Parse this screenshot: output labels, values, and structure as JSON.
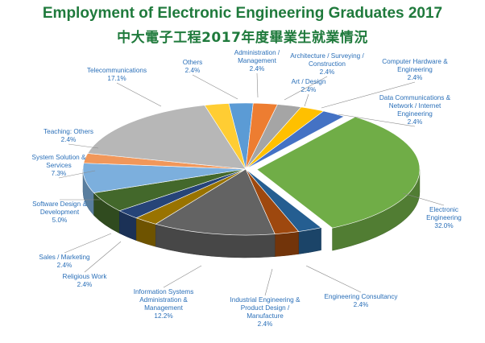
{
  "title": "Employment of Electronic Engineering Graduates 2017",
  "subtitle": "中大電子工程2017年度畢業生就業情況",
  "chart_data": {
    "type": "pie",
    "style": "3d exploded pie",
    "title": "Employment of Electronic Engineering Graduates 2017",
    "subtitle": "中大電子工程2017年度畢業生就業情況",
    "unit": "%",
    "slices": [
      {
        "label": "Administration / Management",
        "value": 2.4,
        "display": "2.4%",
        "color": "#5b9bd5"
      },
      {
        "label": "Architecture / Surveying / Construction",
        "value": 2.4,
        "display": "2.4%",
        "color": "#ed7d31"
      },
      {
        "label": "Art / Design",
        "value": 2.4,
        "display": "2.4%",
        "color": "#a5a5a5"
      },
      {
        "label": "Computer Hardware & Engineering",
        "value": 2.4,
        "display": "2.4%",
        "color": "#ffc000"
      },
      {
        "label": "Data Communications & Network / Internet Engineering",
        "value": 2.4,
        "display": "2.4%",
        "color": "#4472c4"
      },
      {
        "label": "Electronic Engineering",
        "value": 32.0,
        "display": "32.0%",
        "color": "#70ad47"
      },
      {
        "label": "Engineering Consultancy",
        "value": 2.4,
        "display": "2.4%",
        "color": "#255e91"
      },
      {
        "label": "Industrial Engineering & Product Design / Manufacture",
        "value": 2.4,
        "display": "2.4%",
        "color": "#9e480e"
      },
      {
        "label": "Information Systems Administration & Management",
        "value": 12.2,
        "display": "12.2%",
        "color": "#636363"
      },
      {
        "label": "Religious Work",
        "value": 2.4,
        "display": "2.4%",
        "color": "#997300"
      },
      {
        "label": "Sales / Marketing",
        "value": 2.4,
        "display": "2.4%",
        "color": "#264478"
      },
      {
        "label": "Software Design & Development",
        "value": 5.0,
        "display": "5.0%",
        "color": "#43682b"
      },
      {
        "label": "System Solution & Services",
        "value": 7.3,
        "display": "7.3%",
        "color": "#7cafdd"
      },
      {
        "label": "Teaching: Others",
        "value": 2.4,
        "display": "2.4%",
        "color": "#f1975a"
      },
      {
        "label": "Telecommunications",
        "value": 17.1,
        "display": "17.1%",
        "color": "#b7b7b7"
      },
      {
        "label": "Others",
        "value": 2.4,
        "display": "2.4%",
        "color": "#ffcd33"
      }
    ]
  },
  "label_text": [
    {
      "lines": [
        "Administration /",
        "Management",
        "2.4%"
      ]
    },
    {
      "lines": [
        "Architecture / Surveying /",
        "Construction",
        "2.4%"
      ]
    },
    {
      "lines": [
        "Art / Design",
        "2.4%"
      ]
    },
    {
      "lines": [
        "Computer Hardware &",
        "Engineering",
        "2.4%"
      ]
    },
    {
      "lines": [
        "Data Communications &",
        "Network / Internet",
        "Engineering",
        "2.4%"
      ]
    },
    {
      "lines": [
        "Electronic",
        "Engineering",
        "32.0%"
      ]
    },
    {
      "lines": [
        "Engineering Consultancy",
        "2.4%"
      ]
    },
    {
      "lines": [
        "Industrial Engineering &",
        "Product Design /",
        "Manufacture",
        "2.4%"
      ]
    },
    {
      "lines": [
        "Information Systems",
        "Administration &",
        "Management",
        "12.2%"
      ]
    },
    {
      "lines": [
        "Religious Work",
        "2.4%"
      ]
    },
    {
      "lines": [
        "Sales / Marketing",
        "2.4%"
      ]
    },
    {
      "lines": [
        "Software Design &",
        "Development",
        "5.0%"
      ]
    },
    {
      "lines": [
        "System Solution &",
        "Services",
        "7.3%"
      ]
    },
    {
      "lines": [
        "Teaching: Others",
        "2.4%"
      ]
    },
    {
      "lines": [
        "Telecommunications",
        "17.1%"
      ]
    },
    {
      "lines": [
        "Others",
        "2.4%"
      ]
    }
  ]
}
